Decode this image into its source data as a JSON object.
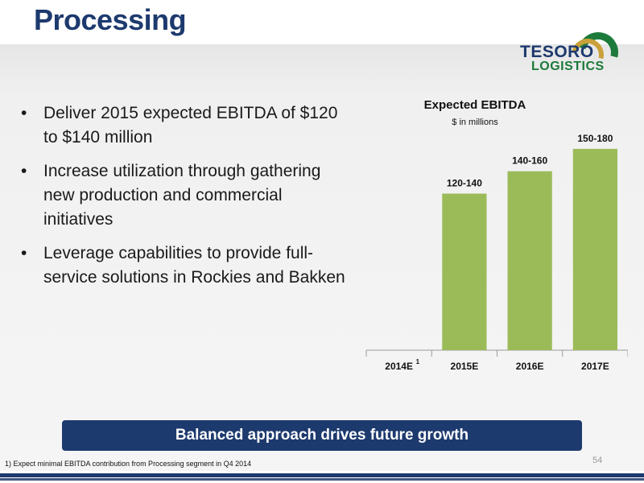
{
  "slide": {
    "title": "Processing",
    "bullets": [
      "Deliver 2015 expected EBITDA of $120 to $140 million",
      "Increase utilization through gathering new production and commercial initiatives",
      "Leverage capabilities to provide full-service solutions in Rockies and Bakken"
    ],
    "banner": "Balanced approach drives future growth",
    "footnote": "1) Expect minimal EBITDA contribution from Processing segment in Q4 2014",
    "page_number": "54"
  },
  "logo": {
    "line1": "TESORO",
    "line2": "LOGISTICS"
  },
  "colors": {
    "brand_navy": "#1d3a6e",
    "bar_green": "#9bbb59",
    "logo_green": "#1c7a3a",
    "logo_gold": "#c9a13a"
  },
  "chart_data": {
    "type": "bar",
    "title": "Expected EBITDA",
    "subtitle": "$ in millions",
    "categories": [
      "2014E",
      "2015E",
      "2016E",
      "2017E"
    ],
    "category_footnote_marks": [
      "1",
      "",
      "",
      ""
    ],
    "ranges": [
      null,
      [
        120,
        140
      ],
      [
        140,
        160
      ],
      [
        150,
        180
      ]
    ],
    "values": [
      0,
      140,
      160,
      180
    ],
    "data_labels": [
      "",
      "120-140",
      "140-160",
      "150-180"
    ],
    "ylim": [
      0,
      185
    ],
    "grid": false,
    "legend": "none"
  }
}
